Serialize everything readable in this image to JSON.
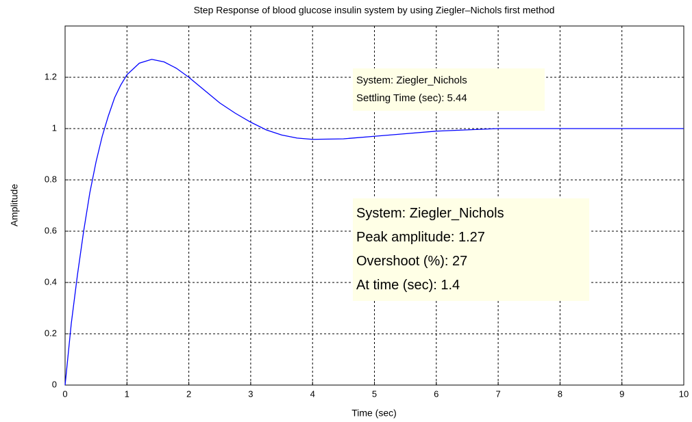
{
  "chart_data": {
    "type": "line",
    "title": "Step Response of blood glucose insulin system by using Ziegler–Nichols first method",
    "xlabel": "Time (sec)",
    "ylabel": "Amplitude",
    "x": [
      0,
      0.1,
      0.2,
      0.3,
      0.4,
      0.5,
      0.6,
      0.7,
      0.8,
      0.9,
      1,
      1.2,
      1.4,
      1.6,
      1.8,
      2,
      2.25,
      2.5,
      2.75,
      3,
      3.25,
      3.5,
      3.75,
      4,
      4.5,
      5,
      5.5,
      6,
      6.5,
      7,
      8,
      9,
      10
    ],
    "values": [
      0,
      0.24,
      0.43,
      0.6,
      0.75,
      0.87,
      0.97,
      1.05,
      1.12,
      1.17,
      1.21,
      1.255,
      1.27,
      1.26,
      1.235,
      1.2,
      1.15,
      1.1,
      1.06,
      1.025,
      0.995,
      0.975,
      0.963,
      0.958,
      0.96,
      0.97,
      0.98,
      0.99,
      0.995,
      1,
      1,
      1,
      1
    ],
    "color": "#0000ff",
    "xlim": [
      0,
      10
    ],
    "xticks": [
      0,
      1,
      2,
      3,
      4,
      5,
      6,
      7,
      8,
      9,
      10
    ],
    "ylim": [
      0,
      1.4
    ],
    "yticks": [
      0,
      0.2,
      0.4,
      0.6,
      0.8,
      1,
      1.2
    ],
    "grid": true,
    "annotations": [
      {
        "lines": [
          "System: Ziegler_Nichols",
          "Settling Time (sec): 5.44"
        ]
      },
      {
        "lines": [
          "System: Ziegler_Nichols",
          "Peak amplitude: 1.27",
          "Overshoot (%): 27",
          "At time (sec): 1.4"
        ]
      }
    ]
  }
}
